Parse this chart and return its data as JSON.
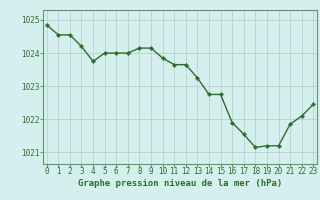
{
  "x": [
    0,
    1,
    2,
    3,
    4,
    5,
    6,
    7,
    8,
    9,
    10,
    11,
    12,
    13,
    14,
    15,
    16,
    17,
    18,
    19,
    20,
    21,
    22,
    23
  ],
  "y": [
    1024.85,
    1024.55,
    1024.55,
    1024.2,
    1023.75,
    1024.0,
    1024.0,
    1024.0,
    1024.15,
    1024.15,
    1023.85,
    1023.65,
    1023.65,
    1023.25,
    1022.75,
    1022.75,
    1021.9,
    1021.55,
    1021.15,
    1021.2,
    1021.2,
    1021.85,
    1022.1,
    1022.45
  ],
  "line_color": "#2d6e2d",
  "marker": "D",
  "marker_size": 2.2,
  "line_width": 1.0,
  "bg_color": "#d5efee",
  "grid_color": "#b0ccc8",
  "xlabel": "Graphe pression niveau de la mer (hPa)",
  "xlabel_fontsize": 6.5,
  "xlabel_color": "#2d6e2d",
  "yticks": [
    1021,
    1022,
    1023,
    1024,
    1025
  ],
  "xticks": [
    0,
    1,
    2,
    3,
    4,
    5,
    6,
    7,
    8,
    9,
    10,
    11,
    12,
    13,
    14,
    15,
    16,
    17,
    18,
    19,
    20,
    21,
    22,
    23
  ],
  "ylim": [
    1020.65,
    1025.3
  ],
  "xlim": [
    -0.3,
    23.3
  ],
  "tick_color": "#2d6e2d",
  "tick_fontsize": 5.5,
  "axis_color": "#5a9a6a"
}
